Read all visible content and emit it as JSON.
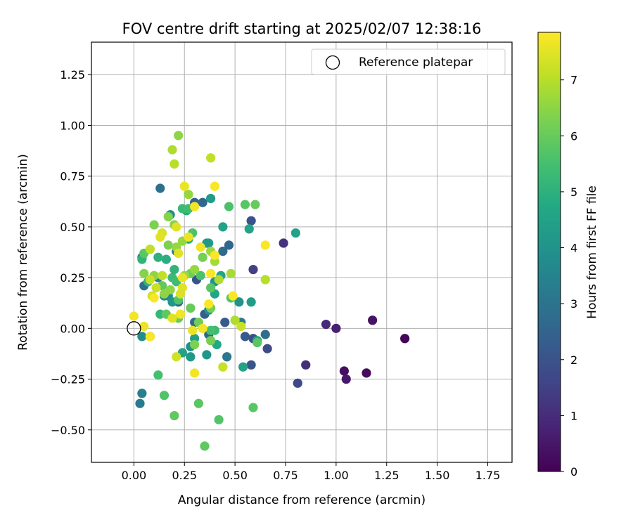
{
  "chart_data": {
    "type": "scatter",
    "title": "FOV centre drift starting at 2025/02/07 12:38:16",
    "xlabel": "Angular distance from reference (arcmin)",
    "ylabel": "Rotation from reference (arcmin)",
    "xlim": [
      -0.21,
      1.87
    ],
    "ylim": [
      -0.66,
      1.41
    ],
    "xticks": [
      0.0,
      0.25,
      0.5,
      0.75,
      1.0,
      1.25,
      1.5,
      1.75
    ],
    "xtick_labels": [
      "0.00",
      "0.25",
      "0.50",
      "0.75",
      "1.00",
      "1.25",
      "1.50",
      "1.75"
    ],
    "yticks": [
      -0.5,
      -0.25,
      0.0,
      0.25,
      0.5,
      0.75,
      1.0,
      1.25
    ],
    "ytick_labels": [
      "−0.50",
      "−0.25",
      "0.00",
      "0.25",
      "0.50",
      "0.75",
      "1.00",
      "1.25"
    ],
    "grid": true,
    "legend": {
      "label": "Reference platepar",
      "position": "top-right",
      "marker": "open-circle"
    },
    "reference_point": {
      "x": 0.0,
      "y": 0.0
    },
    "colorbar": {
      "label": "Hours from first FF file",
      "min": 0,
      "max": 7.85,
      "ticks": [
        0,
        1,
        2,
        3,
        4,
        5,
        6,
        7
      ],
      "tick_labels": [
        "0",
        "1",
        "2",
        "3",
        "4",
        "5",
        "6",
        "7"
      ],
      "colormap": "viridis"
    },
    "series": [
      {
        "points": [
          {
            "x": 1.34,
            "y": -0.05,
            "c": 0.1
          },
          {
            "x": 1.15,
            "y": -0.22,
            "c": 0.2
          },
          {
            "x": 1.04,
            "y": -0.21,
            "c": 0.3
          },
          {
            "x": 1.05,
            "y": -0.25,
            "c": 0.5
          },
          {
            "x": 1.18,
            "y": 0.04,
            "c": 0.4
          },
          {
            "x": 1.0,
            "y": 0.0,
            "c": 0.7
          },
          {
            "x": 0.95,
            "y": 0.02,
            "c": 0.9
          },
          {
            "x": 0.85,
            "y": -0.18,
            "c": 1.0
          },
          {
            "x": 0.74,
            "y": 0.42,
            "c": 1.1
          },
          {
            "x": 0.81,
            "y": -0.27,
            "c": 1.7
          },
          {
            "x": 0.66,
            "y": -0.1,
            "c": 1.8
          },
          {
            "x": 0.59,
            "y": 0.29,
            "c": 1.5
          },
          {
            "x": 0.59,
            "y": -0.05,
            "c": 1.9
          },
          {
            "x": 0.58,
            "y": -0.18,
            "c": 2.1
          },
          {
            "x": 0.58,
            "y": 0.53,
            "c": 2.0
          },
          {
            "x": 0.55,
            "y": -0.04,
            "c": 2.2
          },
          {
            "x": 0.65,
            "y": -0.03,
            "c": 2.8
          },
          {
            "x": 0.45,
            "y": 0.03,
            "c": 2.2
          },
          {
            "x": 0.47,
            "y": 0.41,
            "c": 2.6
          },
          {
            "x": 0.44,
            "y": 0.38,
            "c": 2.7
          },
          {
            "x": 0.31,
            "y": 0.24,
            "c": 2.0
          },
          {
            "x": 0.3,
            "y": 0.62,
            "c": 2.4
          },
          {
            "x": 0.34,
            "y": 0.62,
            "c": 2.6
          },
          {
            "x": 0.13,
            "y": 0.69,
            "c": 2.9
          },
          {
            "x": 0.35,
            "y": 0.07,
            "c": 2.3
          },
          {
            "x": 0.37,
            "y": -0.03,
            "c": 2.5
          },
          {
            "x": 0.3,
            "y": 0.03,
            "c": 2.7
          },
          {
            "x": 0.22,
            "y": 0.13,
            "c": 2.6
          },
          {
            "x": 0.21,
            "y": 0.38,
            "c": 2.8
          },
          {
            "x": 0.05,
            "y": 0.21,
            "c": 2.9
          },
          {
            "x": 0.04,
            "y": 0.35,
            "c": 3.1
          },
          {
            "x": 0.03,
            "y": -0.37,
            "c": 3.2
          },
          {
            "x": 0.04,
            "y": -0.32,
            "c": 3.4
          },
          {
            "x": 0.46,
            "y": -0.14,
            "c": 3.1
          },
          {
            "x": 0.53,
            "y": 0.03,
            "c": 3.3
          },
          {
            "x": 0.04,
            "y": -0.04,
            "c": 3.8
          },
          {
            "x": 0.08,
            "y": -0.04,
            "c": 3.2
          },
          {
            "x": 0.12,
            "y": 0.25,
            "c": 3.5
          },
          {
            "x": 0.18,
            "y": 0.56,
            "c": 3.9
          },
          {
            "x": 0.17,
            "y": 0.16,
            "c": 3.7
          },
          {
            "x": 0.19,
            "y": 0.13,
            "c": 4.1
          },
          {
            "x": 0.15,
            "y": 0.16,
            "c": 3.6
          },
          {
            "x": 0.28,
            "y": -0.09,
            "c": 3.9
          },
          {
            "x": 0.28,
            "y": -0.14,
            "c": 4.2
          },
          {
            "x": 0.36,
            "y": -0.13,
            "c": 4.1
          },
          {
            "x": 0.38,
            "y": 0.64,
            "c": 4.3
          },
          {
            "x": 0.37,
            "y": 0.42,
            "c": 4.4
          },
          {
            "x": 0.36,
            "y": 0.42,
            "c": 4.2
          },
          {
            "x": 0.37,
            "y": 0.09,
            "c": 3.8
          },
          {
            "x": 0.4,
            "y": 0.23,
            "c": 4.0
          },
          {
            "x": 0.43,
            "y": 0.26,
            "c": 4.6
          },
          {
            "x": 0.3,
            "y": -0.05,
            "c": 4.4
          },
          {
            "x": 0.24,
            "y": -0.12,
            "c": 4.5
          },
          {
            "x": 0.41,
            "y": -0.08,
            "c": 4.7
          },
          {
            "x": 0.52,
            "y": 0.13,
            "c": 4.0
          },
          {
            "x": 0.58,
            "y": 0.13,
            "c": 4.3
          },
          {
            "x": 0.57,
            "y": 0.49,
            "c": 4.5
          },
          {
            "x": 0.54,
            "y": -0.19,
            "c": 4.5
          },
          {
            "x": 0.61,
            "y": -0.06,
            "c": 4.6
          },
          {
            "x": 0.8,
            "y": 0.47,
            "c": 4.5
          },
          {
            "x": 0.44,
            "y": 0.5,
            "c": 4.5
          },
          {
            "x": 0.4,
            "y": 0.17,
            "c": 4.6
          },
          {
            "x": 0.27,
            "y": 0.44,
            "c": 4.7
          },
          {
            "x": 0.26,
            "y": 0.58,
            "c": 4.8
          },
          {
            "x": 0.16,
            "y": 0.34,
            "c": 4.9
          },
          {
            "x": 0.12,
            "y": 0.35,
            "c": 5.0
          },
          {
            "x": 0.04,
            "y": 0.34,
            "c": 5.1
          },
          {
            "x": 0.07,
            "y": 0.23,
            "c": 5.0
          },
          {
            "x": 0.13,
            "y": 0.07,
            "c": 5.2
          },
          {
            "x": 0.19,
            "y": 0.25,
            "c": 5.3
          },
          {
            "x": 0.2,
            "y": 0.29,
            "c": 5.1
          },
          {
            "x": 0.21,
            "y": 0.23,
            "c": 5.4
          },
          {
            "x": 0.24,
            "y": 0.59,
            "c": 5.3
          },
          {
            "x": 0.27,
            "y": 0.59,
            "c": 5.4
          },
          {
            "x": 0.29,
            "y": 0.47,
            "c": 5.6
          },
          {
            "x": 0.47,
            "y": 0.6,
            "c": 5.6
          },
          {
            "x": 0.4,
            "y": -0.01,
            "c": 5.3
          },
          {
            "x": 0.38,
            "y": -0.01,
            "c": 5.5
          },
          {
            "x": 0.48,
            "y": 0.15,
            "c": 5.7
          },
          {
            "x": 0.33,
            "y": 0.26,
            "c": 5.6
          },
          {
            "x": 0.38,
            "y": 0.2,
            "c": 5.8
          },
          {
            "x": 0.22,
            "y": 0.14,
            "c": 5.7
          },
          {
            "x": 0.16,
            "y": 0.07,
            "c": 5.9
          },
          {
            "x": 0.14,
            "y": 0.21,
            "c": 5.9
          },
          {
            "x": 0.05,
            "y": 0.37,
            "c": 5.8
          },
          {
            "x": 0.12,
            "y": -0.23,
            "c": 5.5
          },
          {
            "x": 0.15,
            "y": -0.33,
            "c": 5.7
          },
          {
            "x": 0.2,
            "y": -0.43,
            "c": 5.9
          },
          {
            "x": 0.32,
            "y": -0.37,
            "c": 5.8
          },
          {
            "x": 0.35,
            "y": -0.58,
            "c": 5.9
          },
          {
            "x": 0.42,
            "y": -0.45,
            "c": 5.7
          },
          {
            "x": 0.59,
            "y": -0.39,
            "c": 5.8
          },
          {
            "x": 0.61,
            "y": -0.07,
            "c": 5.8
          },
          {
            "x": 0.55,
            "y": 0.61,
            "c": 5.8
          },
          {
            "x": 0.6,
            "y": 0.61,
            "c": 6.0
          },
          {
            "x": 0.22,
            "y": 0.05,
            "c": 6.0
          },
          {
            "x": 0.28,
            "y": 0.1,
            "c": 6.0
          },
          {
            "x": 0.28,
            "y": 0.27,
            "c": 6.1
          },
          {
            "x": 0.32,
            "y": 0.03,
            "c": 6.1
          },
          {
            "x": 0.38,
            "y": -0.06,
            "c": 6.2
          },
          {
            "x": 0.38,
            "y": 0.1,
            "c": 6.2
          },
          {
            "x": 0.34,
            "y": 0.35,
            "c": 6.2
          },
          {
            "x": 0.3,
            "y": -0.08,
            "c": 6.3
          },
          {
            "x": 0.17,
            "y": 0.41,
            "c": 6.3
          },
          {
            "x": 0.1,
            "y": 0.51,
            "c": 6.3
          },
          {
            "x": 0.17,
            "y": 0.55,
            "c": 6.4
          },
          {
            "x": 0.2,
            "y": 0.51,
            "c": 6.4
          },
          {
            "x": 0.05,
            "y": 0.27,
            "c": 6.4
          },
          {
            "x": 0.1,
            "y": 0.26,
            "c": 6.5
          },
          {
            "x": 0.15,
            "y": 0.17,
            "c": 6.5
          },
          {
            "x": 0.18,
            "y": 0.19,
            "c": 6.5
          },
          {
            "x": 0.21,
            "y": 0.4,
            "c": 6.6
          },
          {
            "x": 0.24,
            "y": 0.43,
            "c": 6.6
          },
          {
            "x": 0.27,
            "y": 0.66,
            "c": 6.6
          },
          {
            "x": 0.3,
            "y": 0.29,
            "c": 6.6
          },
          {
            "x": 0.25,
            "y": 0.26,
            "c": 6.7
          },
          {
            "x": 0.38,
            "y": 0.38,
            "c": 6.7
          },
          {
            "x": 0.4,
            "y": 0.33,
            "c": 6.8
          },
          {
            "x": 0.42,
            "y": 0.24,
            "c": 6.9
          },
          {
            "x": 0.48,
            "y": 0.27,
            "c": 6.8
          },
          {
            "x": 0.5,
            "y": 0.04,
            "c": 6.9
          },
          {
            "x": 0.22,
            "y": 0.95,
            "c": 6.5
          },
          {
            "x": 0.19,
            "y": 0.88,
            "c": 6.9
          },
          {
            "x": 0.2,
            "y": 0.81,
            "c": 7.0
          },
          {
            "x": 0.38,
            "y": 0.84,
            "c": 7.1
          },
          {
            "x": 0.08,
            "y": 0.39,
            "c": 7.1
          },
          {
            "x": 0.14,
            "y": 0.26,
            "c": 7.1
          },
          {
            "x": 0.08,
            "y": 0.24,
            "c": 7.2
          },
          {
            "x": 0.11,
            "y": 0.2,
            "c": 7.2
          },
          {
            "x": 0.09,
            "y": 0.16,
            "c": 7.3
          },
          {
            "x": 0.21,
            "y": -0.14,
            "c": 7.3
          },
          {
            "x": 0.44,
            "y": -0.19,
            "c": 7.2
          },
          {
            "x": 0.53,
            "y": 0.01,
            "c": 7.2
          },
          {
            "x": 0.65,
            "y": 0.24,
            "c": 7.0
          },
          {
            "x": 0.14,
            "y": 0.47,
            "c": 7.4
          },
          {
            "x": 0.13,
            "y": 0.45,
            "c": 7.5
          },
          {
            "x": 0.21,
            "y": 0.5,
            "c": 7.5
          },
          {
            "x": 0.22,
            "y": 0.37,
            "c": 7.5
          },
          {
            "x": 0.24,
            "y": 0.2,
            "c": 7.5
          },
          {
            "x": 0.24,
            "y": 0.25,
            "c": 7.6
          },
          {
            "x": 0.25,
            "y": 0.7,
            "c": 7.6
          },
          {
            "x": 0.27,
            "y": 0.45,
            "c": 7.6
          },
          {
            "x": 0.29,
            "y": -0.01,
            "c": 7.6
          },
          {
            "x": 0.3,
            "y": -0.22,
            "c": 7.7
          },
          {
            "x": 0.3,
            "y": 0.6,
            "c": 7.7
          },
          {
            "x": 0.33,
            "y": 0.4,
            "c": 7.7
          },
          {
            "x": 0.34,
            "y": 0.0,
            "c": 7.7
          },
          {
            "x": 0.37,
            "y": 0.12,
            "c": 7.8
          },
          {
            "x": 0.38,
            "y": 0.27,
            "c": 7.8
          },
          {
            "x": 0.4,
            "y": 0.7,
            "c": 7.8
          },
          {
            "x": 0.4,
            "y": 0.36,
            "c": 7.8
          },
          {
            "x": 0.49,
            "y": 0.16,
            "c": 7.8
          },
          {
            "x": 0.65,
            "y": 0.41,
            "c": 7.8
          },
          {
            "x": 0.0,
            "y": 0.06,
            "c": 7.7
          },
          {
            "x": 0.05,
            "y": 0.01,
            "c": 7.6
          },
          {
            "x": 0.08,
            "y": -0.04,
            "c": 7.8
          },
          {
            "x": 0.23,
            "y": 0.07,
            "c": 7.7
          },
          {
            "x": 0.19,
            "y": 0.05,
            "c": 7.5
          },
          {
            "x": 0.1,
            "y": 0.15,
            "c": 7.8
          },
          {
            "x": 0.23,
            "y": 0.17,
            "c": 7.4
          }
        ]
      }
    ]
  }
}
